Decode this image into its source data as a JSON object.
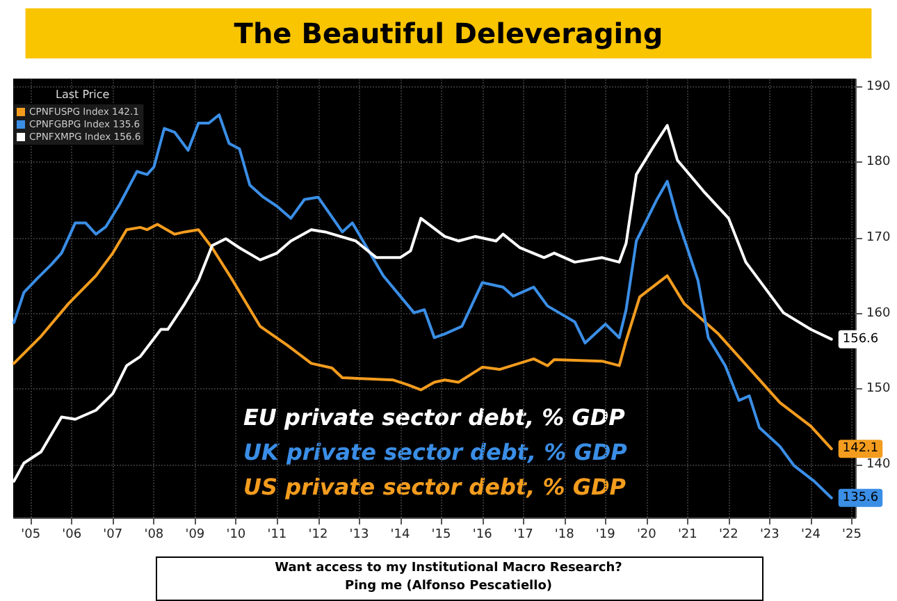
{
  "chart_data": {
    "type": "line",
    "title": "The Beautiful Deleveraging",
    "legend_title": "Last Price",
    "legend": "top left",
    "grid": true,
    "line_style": "solid",
    "marker": "none",
    "annotations": [
      "EU private sector debt, % GDP",
      "UK private sector debt, % GDP",
      "US private sector debt, % GDP",
      "Want access to my Institutional Macro Research?",
      "Ping me (Alfonso Pescatiello)"
    ],
    "xlim": [
      "2005-02",
      "2025-08"
    ],
    "xticks": [
      {
        "value": "2005-07",
        "label": "'05"
      },
      {
        "value": "2006-07",
        "label": "'06"
      },
      {
        "value": "2007-07",
        "label": "'07"
      },
      {
        "value": "2008-07",
        "label": "'08"
      },
      {
        "value": "2009-07",
        "label": "'09"
      },
      {
        "value": "2010-07",
        "label": "'10"
      },
      {
        "value": "2011-07",
        "label": "'11"
      },
      {
        "value": "2012-07",
        "label": "'12"
      },
      {
        "value": "2013-07",
        "label": "'13"
      },
      {
        "value": "2014-07",
        "label": "'14"
      },
      {
        "value": "2015-07",
        "label": "'15"
      },
      {
        "value": "2016-07",
        "label": "'16"
      },
      {
        "value": "2017-07",
        "label": "'17"
      },
      {
        "value": "2018-07",
        "label": "'18"
      },
      {
        "value": "2019-07",
        "label": "'19"
      },
      {
        "value": "2020-07",
        "label": "'20"
      },
      {
        "value": "2021-07",
        "label": "'21"
      },
      {
        "value": "2022-07",
        "label": "'22"
      },
      {
        "value": "2023-07",
        "label": "'23"
      },
      {
        "value": "2024-07",
        "label": "'24"
      },
      {
        "value": "2025-07",
        "label": "'25"
      }
    ],
    "ylim": [
      133,
      191
    ],
    "yticks": [
      140,
      150,
      160,
      170,
      180,
      190
    ],
    "series": [
      {
        "name": "CPNFUSPG Index 142.1",
        "color": "#f39c1e",
        "x": [
          "2005-02",
          "2005-10",
          "2006-06",
          "2007-02",
          "2007-07",
          "2007-11",
          "2008-03",
          "2008-05",
          "2008-08",
          "2009-01",
          "2009-04",
          "2009-08",
          "2009-12",
          "2010-06",
          "2011-02",
          "2011-10",
          "2012-05",
          "2012-11",
          "2013-02",
          "2014-05",
          "2014-09",
          "2015-01",
          "2015-05",
          "2015-08",
          "2015-12",
          "2016-07",
          "2016-12",
          "2017-10",
          "2018-02",
          "2018-04",
          "2019-06",
          "2019-11",
          "2020-01",
          "2020-05",
          "2021-01",
          "2021-06",
          "2022-04",
          "2023-10",
          "2024-07",
          "2025-01"
        ],
        "values": [
          153.4,
          157,
          161.3,
          165,
          168,
          171.1,
          171.4,
          171.1,
          171.8,
          170.5,
          170.8,
          171.1,
          168.7,
          164.4,
          158.3,
          155.8,
          153.4,
          152.8,
          151.5,
          151.2,
          150.6,
          149.9,
          150.9,
          151.2,
          150.9,
          152.9,
          152.6,
          154,
          153.1,
          153.9,
          153.7,
          153.1,
          156.4,
          162.2,
          165,
          161.3,
          157.3,
          148.2,
          145.1,
          142.1
        ],
        "value_labels": [
          null,
          null,
          null,
          null,
          null,
          null,
          null,
          null,
          null,
          null,
          null,
          null,
          null,
          null,
          null,
          null,
          null,
          null,
          null,
          null,
          null,
          null,
          null,
          null,
          null,
          null,
          null,
          null,
          null,
          null,
          null,
          null,
          null,
          null,
          null,
          null,
          null,
          null,
          null,
          "142.1"
        ]
      },
      {
        "name": "CPNFGBPG Index 135.6",
        "color": "#3a8ee6",
        "x": [
          "2005-02",
          "2005-05",
          "2005-09",
          "2006-01",
          "2006-04",
          "2006-08",
          "2006-11",
          "2007-02",
          "2007-05",
          "2007-09",
          "2008-02",
          "2008-05",
          "2008-07",
          "2008-10",
          "2009-01",
          "2009-05",
          "2009-08",
          "2009-11",
          "2010-02",
          "2010-05",
          "2010-08",
          "2010-11",
          "2011-03",
          "2011-07",
          "2011-11",
          "2012-03",
          "2012-07",
          "2013-02",
          "2013-05",
          "2014-02",
          "2014-11",
          "2015-02",
          "2015-05",
          "2015-08",
          "2016-01",
          "2016-07",
          "2017-01",
          "2017-04",
          "2017-10",
          "2018-02",
          "2018-10",
          "2019-01",
          "2019-07",
          "2019-11",
          "2020-01",
          "2020-04",
          "2020-10",
          "2021-01",
          "2021-04",
          "2021-10",
          "2022-01",
          "2022-06",
          "2022-10",
          "2023-01",
          "2023-04",
          "2023-10",
          "2024-02",
          "2024-08",
          "2025-01"
        ],
        "values": [
          158.8,
          162.8,
          164.7,
          166.5,
          168,
          172,
          172,
          170.5,
          171.5,
          174.5,
          178.8,
          178.4,
          179.4,
          184.5,
          184,
          181.6,
          185.2,
          185.2,
          186.3,
          182.5,
          181.8,
          177,
          175.4,
          174.2,
          172.6,
          175.1,
          175.4,
          170.8,
          172,
          165,
          160.1,
          160.5,
          156.8,
          157.3,
          158.3,
          164.1,
          163.5,
          162.3,
          163.5,
          161,
          158.9,
          156.1,
          158.6,
          156.8,
          160.5,
          169.6,
          175.1,
          177.5,
          172.6,
          164.4,
          156.8,
          153.1,
          148.5,
          149.1,
          144.9,
          142.4,
          139.9,
          137.8,
          135.6
        ],
        "value_labels": [
          null,
          null,
          null,
          null,
          null,
          null,
          null,
          null,
          null,
          null,
          null,
          null,
          null,
          null,
          null,
          null,
          null,
          null,
          null,
          null,
          null,
          null,
          null,
          null,
          null,
          null,
          null,
          null,
          null,
          null,
          null,
          null,
          null,
          null,
          null,
          null,
          null,
          null,
          null,
          null,
          null,
          null,
          null,
          null,
          null,
          null,
          null,
          null,
          null,
          null,
          null,
          null,
          null,
          null,
          null,
          null,
          null,
          null,
          "135.6"
        ]
      },
      {
        "name": "CPNFXMPG Index 156.6",
        "color": "#ffffff",
        "x": [
          "2005-02",
          "2005-05",
          "2005-10",
          "2006-04",
          "2006-08",
          "2007-02",
          "2007-07",
          "2007-11",
          "2008-03",
          "2008-09",
          "2008-11",
          "2009-04",
          "2009-08",
          "2009-12",
          "2010-04",
          "2010-08",
          "2011-02",
          "2011-07",
          "2011-11",
          "2012-05",
          "2012-09",
          "2013-06",
          "2013-12",
          "2014-07",
          "2014-10",
          "2015-01",
          "2015-08",
          "2015-12",
          "2016-05",
          "2016-11",
          "2017-01",
          "2017-06",
          "2018-01",
          "2018-04",
          "2018-10",
          "2019-06",
          "2019-11",
          "2020-01",
          "2020-04",
          "2020-09",
          "2021-01",
          "2021-04",
          "2021-12",
          "2022-07",
          "2022-12",
          "2023-11",
          "2024-07",
          "2025-01"
        ],
        "values": [
          137.8,
          140.2,
          141.7,
          146.3,
          146,
          147.2,
          149.4,
          153.1,
          154.3,
          157.9,
          157.9,
          161.3,
          164.4,
          169,
          169.9,
          168.7,
          167.1,
          168,
          169.6,
          171.1,
          170.8,
          169.6,
          167.4,
          167.4,
          168.3,
          172.6,
          170.2,
          169.6,
          170.2,
          169.6,
          170.5,
          168.7,
          167.4,
          168,
          166.8,
          167.4,
          166.8,
          169.3,
          178.4,
          182.1,
          184.9,
          180.3,
          176,
          172.6,
          166.8,
          160.1,
          157.9,
          156.6
        ],
        "value_labels": [
          null,
          null,
          null,
          null,
          null,
          null,
          null,
          null,
          null,
          null,
          null,
          null,
          null,
          null,
          null,
          null,
          null,
          null,
          null,
          null,
          null,
          null,
          null,
          null,
          null,
          null,
          null,
          null,
          null,
          null,
          null,
          null,
          null,
          null,
          null,
          null,
          null,
          null,
          null,
          null,
          null,
          null,
          null,
          null,
          null,
          null,
          null,
          "156.6"
        ]
      }
    ]
  }
}
